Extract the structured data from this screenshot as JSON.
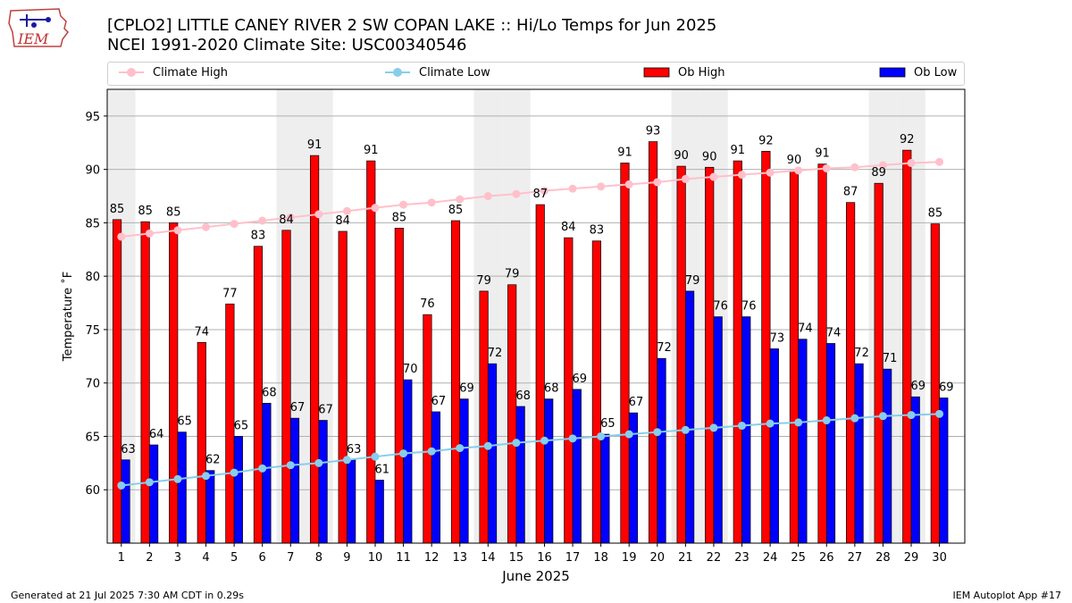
{
  "logo": {
    "text": "IEM",
    "icon": "iem-iowa-logo"
  },
  "title_line1": "[CPLO2] LITTLE CANEY RIVER 2 SW COPAN LAKE :: Hi/Lo Temps for Jun 2025",
  "title_line2": "NCEI 1991-2020 Climate Site: USC00340546",
  "footer_left": "Generated at 21 Jul 2025 7:30 AM CDT in 0.29s",
  "footer_right": "IEM Autoplot App #17",
  "colors": {
    "ob_high": "#ff0000",
    "ob_low": "#0000ff",
    "climate_high": "#ffc0cb",
    "climate_low": "#87ceeb",
    "weekend_shade": "#eeeeee",
    "grid": "#b0b0b0"
  },
  "chart_data": {
    "type": "bar",
    "xlabel": "June 2025",
    "ylabel": "Temperature ˚F",
    "ylim": [
      55,
      97.5
    ],
    "yticks": [
      60,
      65,
      70,
      75,
      80,
      85,
      90,
      95
    ],
    "grid": "horizontal",
    "legend": {
      "placement": "top",
      "entries": [
        "Climate High",
        "Climate Low",
        "Ob High",
        "Ob Low"
      ]
    },
    "categories": [
      "1",
      "2",
      "3",
      "4",
      "5",
      "6",
      "7",
      "8",
      "9",
      "10",
      "11",
      "12",
      "13",
      "14",
      "15",
      "16",
      "17",
      "18",
      "19",
      "20",
      "21",
      "22",
      "23",
      "24",
      "25",
      "26",
      "27",
      "28",
      "29",
      "30"
    ],
    "shaded_days": [
      1,
      7,
      8,
      14,
      15,
      21,
      22,
      28,
      29
    ],
    "series": [
      {
        "name": "Ob High",
        "kind": "bar",
        "values": [
          85.3,
          85.1,
          85.0,
          73.8,
          77.4,
          82.8,
          84.3,
          91.3,
          84.2,
          90.8,
          84.5,
          76.4,
          85.2,
          78.6,
          79.2,
          86.7,
          83.6,
          83.3,
          90.6,
          92.6,
          90.3,
          90.2,
          90.8,
          91.7,
          89.9,
          90.5,
          86.9,
          88.7,
          91.8,
          84.9
        ],
        "labels": [
          85,
          85,
          85,
          74,
          77,
          83,
          84,
          91,
          84,
          91,
          85,
          76,
          85,
          79,
          79,
          87,
          84,
          83,
          91,
          93,
          90,
          90,
          91,
          92,
          90,
          91,
          87,
          89,
          92,
          85
        ]
      },
      {
        "name": "Ob Low",
        "kind": "bar",
        "values": [
          62.8,
          64.2,
          65.4,
          61.8,
          65.0,
          68.1,
          66.7,
          66.5,
          62.8,
          60.9,
          70.3,
          67.3,
          68.5,
          71.8,
          67.8,
          68.5,
          69.4,
          65.2,
          67.2,
          72.3,
          78.6,
          76.2,
          76.2,
          73.2,
          74.1,
          73.7,
          71.8,
          71.3,
          68.7,
          68.6
        ],
        "labels": [
          63,
          64,
          65,
          62,
          65,
          68,
          67,
          67,
          63,
          61,
          70,
          67,
          69,
          72,
          68,
          68,
          69,
          65,
          67,
          72,
          79,
          76,
          76,
          73,
          74,
          74,
          72,
          71,
          69,
          69
        ]
      },
      {
        "name": "Climate High",
        "kind": "line",
        "values": [
          83.7,
          84.0,
          84.3,
          84.6,
          84.9,
          85.2,
          85.5,
          85.8,
          86.1,
          86.4,
          86.7,
          86.9,
          87.2,
          87.5,
          87.7,
          88.0,
          88.2,
          88.4,
          88.6,
          88.8,
          89.1,
          89.3,
          89.5,
          89.7,
          89.9,
          90.1,
          90.2,
          90.4,
          90.6,
          90.7
        ]
      },
      {
        "name": "Climate Low",
        "kind": "line",
        "values": [
          60.4,
          60.7,
          61.0,
          61.3,
          61.6,
          62.0,
          62.3,
          62.5,
          62.8,
          63.1,
          63.4,
          63.6,
          63.9,
          64.1,
          64.4,
          64.6,
          64.8,
          65.0,
          65.2,
          65.4,
          65.6,
          65.8,
          66.0,
          66.2,
          66.3,
          66.5,
          66.7,
          66.9,
          67.0,
          67.1
        ]
      }
    ]
  }
}
